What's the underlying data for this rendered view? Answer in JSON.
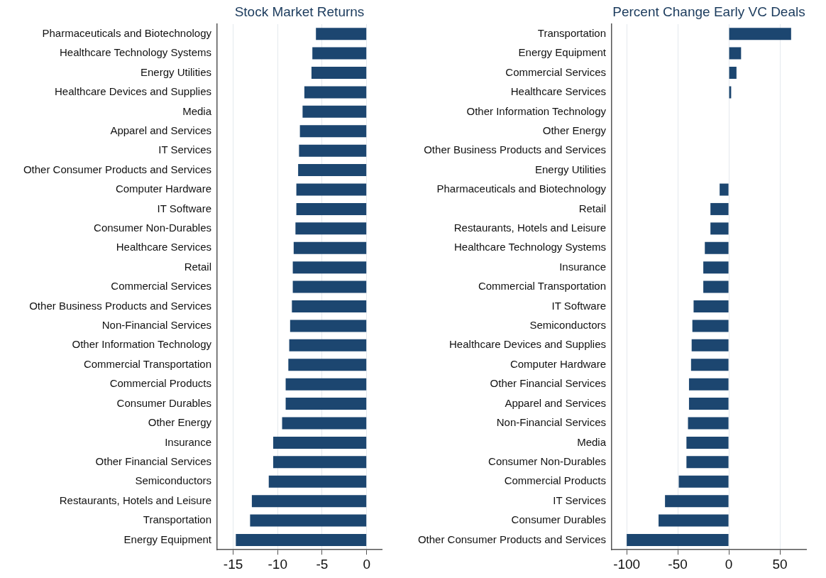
{
  "chart_data": [
    {
      "type": "bar",
      "orientation": "horizontal",
      "title": "Stock Market Returns",
      "color": "#1c4670",
      "grid": "x",
      "categories": [
        "Pharmaceuticals and Biotechnology",
        "Healthcare Technology Systems",
        "Energy Utilities",
        "Healthcare Devices and Supplies",
        "Media",
        "Apparel and Services",
        "IT Services",
        "Other Consumer Products and Services",
        "Computer Hardware",
        "IT Software",
        "Consumer Non-Durables",
        "Healthcare Services",
        "Retail",
        "Commercial Services",
        "Other Business Products and Services",
        "Non-Financial Services",
        "Other Information Technology",
        "Commercial Transportation",
        "Commercial Products",
        "Consumer Durables",
        "Other Energy",
        "Insurance",
        "Other Financial Services",
        "Semiconductors",
        "Restaurants, Hotels and Leisure",
        "Transportation",
        "Energy Equipment"
      ],
      "values": [
        -5.7,
        -6.1,
        -6.2,
        -7.0,
        -7.2,
        -7.5,
        -7.6,
        -7.7,
        -7.9,
        -7.9,
        -8.0,
        -8.2,
        -8.3,
        -8.3,
        -8.4,
        -8.6,
        -8.7,
        -8.8,
        -9.1,
        -9.1,
        -9.5,
        -10.5,
        -10.5,
        -11.0,
        -12.9,
        -13.1,
        -14.7
      ],
      "xlim": [
        -16.8,
        1.7
      ],
      "xticks": [
        -15,
        -10,
        -5,
        0
      ]
    },
    {
      "type": "bar",
      "orientation": "horizontal",
      "title": "Percent Change Early VC Deals",
      "color": "#1c4670",
      "grid": "x",
      "categories": [
        "Transportation",
        "Energy Equipment",
        "Commercial Services",
        "Healthcare Services",
        "Other Information Technology",
        "Other Energy",
        "Other Business Products and Services",
        "Energy Utilities",
        "Pharmaceuticals and Biotechnology",
        "Retail",
        "Restaurants, Hotels and Leisure",
        "Healthcare Technology Systems",
        "Insurance",
        "Commercial Transportation",
        "IT Software",
        "Semiconductors",
        "Healthcare Devices and Supplies",
        "Computer Hardware",
        "Other Financial Services",
        "Apparel and Services",
        "Non-Financial Services",
        "Media",
        "Consumer Non-Durables",
        "Commercial Products",
        "IT Services",
        "Consumer Durables",
        "Other Consumer Products and Services"
      ],
      "values": [
        61,
        12,
        7.5,
        2.3,
        0,
        0,
        0,
        0,
        -9,
        -18,
        -18,
        -23.5,
        -25,
        -25,
        -34.5,
        -35.7,
        -36.4,
        -37,
        -39,
        -39,
        -40,
        -41.5,
        -41.5,
        -49,
        -62.5,
        -68.8,
        -100
      ],
      "xlim": [
        -114.7,
        75.7
      ],
      "xticks": [
        -100,
        -50,
        0,
        50
      ]
    }
  ]
}
